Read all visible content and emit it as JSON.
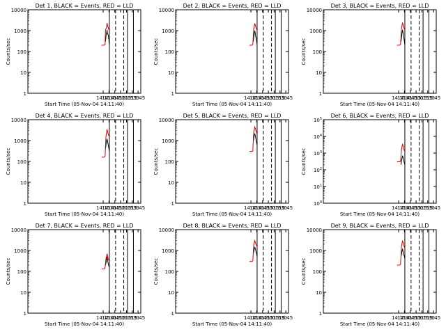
{
  "chart_data": [
    {
      "type": "line",
      "title": "Det 1, BLACK = Events, RED = LLD",
      "xlabel": "Start Time (05-Nov-04 14:11:40)",
      "ylabel": "Counts/sec",
      "ylim": [
        1,
        10000
      ],
      "log_y": true,
      "ytick_style": "plain",
      "x_ticks": [
        "14:15",
        "14:30",
        "14:45",
        "15:00",
        "15:15",
        "15:30",
        "15:45"
      ],
      "solid_lines": [
        "14:31",
        "15:18",
        "15:33"
      ],
      "dashed_lines": [
        "14:47",
        "15:08"
      ],
      "series": [
        {
          "name": "Events",
          "color": "#000000",
          "x": [
            "14:21",
            "14:22",
            "14:23",
            "14:24",
            "14:25",
            "14:26",
            "14:27",
            "14:28",
            "14:29",
            "14:29",
            "14:30",
            "14:30",
            "14:31"
          ],
          "values": [
            300,
            500,
            700,
            800,
            1100,
            700,
            700,
            600,
            500,
            400,
            400,
            300,
            200
          ]
        },
        {
          "name": "LLD",
          "color": "#cc0000",
          "x": [
            "14:11",
            "14:14",
            "14:17",
            "14:20",
            "14:21",
            "14:23",
            "14:24",
            "14:25",
            "14:27",
            "14:28",
            "14:29",
            "14:31"
          ],
          "values": [
            200,
            200,
            200,
            220,
            1100,
            1300,
            1700,
            2300,
            1500,
            1400,
            1200,
            1000
          ]
        }
      ]
    },
    {
      "type": "line",
      "title": "Det 2, BLACK = Events, RED = LLD",
      "xlabel": "Start Time (05-Nov-04 14:11:40)",
      "ylabel": "Counts/sec",
      "ylim": [
        1,
        10000
      ],
      "log_y": true,
      "ytick_style": "plain",
      "x_ticks": [
        "14:15",
        "14:30",
        "14:45",
        "15:00",
        "15:15",
        "15:30",
        "15:45"
      ],
      "solid_lines": [
        "14:31",
        "15:18",
        "15:33"
      ],
      "dashed_lines": [
        "14:47",
        "15:08"
      ],
      "series": [
        {
          "name": "Events",
          "color": "#000000",
          "x": [
            "14:21",
            "14:23",
            "14:25",
            "14:27",
            "14:29",
            "14:31"
          ],
          "values": [
            300,
            600,
            1000,
            600,
            400,
            200
          ]
        },
        {
          "name": "LLD",
          "color": "#cc0000",
          "x": [
            "14:11",
            "14:17",
            "14:20",
            "14:22",
            "14:25",
            "14:28",
            "14:31"
          ],
          "values": [
            200,
            200,
            220,
            1200,
            2200,
            1400,
            1000
          ]
        }
      ]
    },
    {
      "type": "line",
      "title": "Det 3, BLACK = Events, RED = LLD",
      "xlabel": "Start Time (05-Nov-04 14:11:40)",
      "ylabel": "Counts/sec",
      "ylim": [
        1,
        10000
      ],
      "log_y": true,
      "ytick_style": "plain",
      "x_ticks": [
        "14:15",
        "14:30",
        "14:45",
        "15:00",
        "15:15",
        "15:30",
        "15:45"
      ],
      "solid_lines": [
        "14:31",
        "15:18",
        "15:33"
      ],
      "dashed_lines": [
        "14:47",
        "15:08"
      ],
      "series": [
        {
          "name": "Events",
          "color": "#000000",
          "x": [
            "14:21",
            "14:23",
            "14:25",
            "14:27",
            "14:29",
            "14:31"
          ],
          "values": [
            300,
            600,
            1100,
            700,
            400,
            200
          ]
        },
        {
          "name": "LLD",
          "color": "#cc0000",
          "x": [
            "14:11",
            "14:17",
            "14:20",
            "14:22",
            "14:25",
            "14:28",
            "14:31"
          ],
          "values": [
            200,
            200,
            220,
            1200,
            2400,
            1500,
            1000
          ]
        }
      ]
    },
    {
      "type": "line",
      "title": "Det 4, BLACK = Events, RED = LLD",
      "xlabel": "Start Time (05-Nov-04 14:11:40)",
      "ylabel": "Counts/sec",
      "ylim": [
        1,
        10000
      ],
      "log_y": true,
      "ytick_style": "plain",
      "x_ticks": [
        "14:15",
        "14:30",
        "14:45",
        "15:00",
        "15:15",
        "15:30",
        "15:45"
      ],
      "solid_lines": [
        "14:31",
        "15:18",
        "15:33"
      ],
      "dashed_lines": [
        "14:47",
        "15:08"
      ],
      "series": [
        {
          "name": "Events",
          "color": "#000000",
          "x": [
            "14:21",
            "14:23",
            "14:25",
            "14:27",
            "14:29",
            "14:31"
          ],
          "values": [
            400,
            800,
            1200,
            800,
            500,
            300
          ]
        },
        {
          "name": "LLD",
          "color": "#cc0000",
          "x": [
            "14:11",
            "14:17",
            "14:20",
            "14:22",
            "14:25",
            "14:28",
            "14:31"
          ],
          "values": [
            160,
            160,
            180,
            1500,
            3500,
            2000,
            1500
          ]
        }
      ]
    },
    {
      "type": "line",
      "title": "Det 5, BLACK = Events, RED = LLD",
      "xlabel": "Start Time (05-Nov-04 14:11:40)",
      "ylabel": "Counts/sec",
      "ylim": [
        1,
        10000
      ],
      "log_y": true,
      "ytick_style": "plain",
      "x_ticks": [
        "14:15",
        "14:30",
        "14:45",
        "15:00",
        "15:15",
        "15:30",
        "15:45"
      ],
      "solid_lines": [
        "14:31",
        "15:18",
        "15:33"
      ],
      "dashed_lines": [
        "14:47",
        "15:08"
      ],
      "series": [
        {
          "name": "Events",
          "color": "#000000",
          "x": [
            "14:21",
            "14:23",
            "14:25",
            "14:27",
            "14:29",
            "14:31"
          ],
          "values": [
            900,
            1500,
            2200,
            1500,
            900,
            600
          ]
        },
        {
          "name": "LLD",
          "color": "#cc0000",
          "x": [
            "14:11",
            "14:17",
            "14:20",
            "14:22",
            "14:25",
            "14:28",
            "14:31"
          ],
          "values": [
            300,
            300,
            320,
            2500,
            4500,
            3000,
            2000
          ]
        }
      ]
    },
    {
      "type": "line",
      "title": "Det 6, BLACK = Events, RED = LLD",
      "xlabel": "Start Time (05-Nov-04 14:11:40)",
      "ylabel": "Counts/sec",
      "ylim": [
        1,
        100000
      ],
      "log_y": true,
      "ytick_style": "power",
      "x_ticks": [
        "14:15",
        "14:30",
        "14:45",
        "15:00",
        "15:15",
        "15:30",
        "15:45"
      ],
      "solid_lines": [
        "14:31",
        "15:18",
        "15:33"
      ],
      "dashed_lines": [
        "14:47",
        "15:08"
      ],
      "series": [
        {
          "name": "Events",
          "color": "#000000",
          "x": [
            "14:21",
            "14:23",
            "14:25",
            "14:27",
            "14:29",
            "14:31"
          ],
          "values": [
            200,
            400,
            700,
            500,
            300,
            200
          ]
        },
        {
          "name": "LLD",
          "color": "#cc0000",
          "x": [
            "14:11",
            "14:17",
            "14:20",
            "14:22",
            "14:25",
            "14:28",
            "14:31"
          ],
          "values": [
            300,
            300,
            320,
            1500,
            3500,
            1800,
            1200
          ]
        }
      ]
    },
    {
      "type": "line",
      "title": "Det 7, BLACK = Events, RED = LLD",
      "xlabel": "Start Time (05-Nov-04 14:11:40)",
      "ylabel": "Counts/sec",
      "ylim": [
        1,
        10000
      ],
      "log_y": true,
      "ytick_style": "plain",
      "x_ticks": [
        "14:15",
        "14:30",
        "14:45",
        "15:00",
        "15:15",
        "15:30",
        "15:45"
      ],
      "solid_lines": [
        "14:31",
        "15:18",
        "15:33"
      ],
      "dashed_lines": [
        "14:47",
        "15:08"
      ],
      "series": [
        {
          "name": "Events",
          "color": "#000000",
          "x": [
            "14:21",
            "14:23",
            "14:25",
            "14:27",
            "14:29",
            "14:31"
          ],
          "values": [
            200,
            300,
            500,
            300,
            200,
            150
          ]
        },
        {
          "name": "LLD",
          "color": "#cc0000",
          "x": [
            "14:11",
            "14:17",
            "14:20",
            "14:22",
            "14:25",
            "14:28",
            "14:31"
          ],
          "values": [
            130,
            130,
            150,
            400,
            700,
            400,
            300
          ]
        }
      ]
    },
    {
      "type": "line",
      "title": "Det 8, BLACK = Events, RED = LLD",
      "xlabel": "Start Time (05-Nov-04 14:11:40)",
      "ylabel": "Counts/sec",
      "ylim": [
        1,
        10000
      ],
      "log_y": true,
      "ytick_style": "plain",
      "x_ticks": [
        "14:15",
        "14:30",
        "14:45",
        "15:00",
        "15:15",
        "15:30",
        "15:45"
      ],
      "solid_lines": [
        "14:31",
        "15:18",
        "15:33"
      ],
      "dashed_lines": [
        "14:47",
        "15:08"
      ],
      "series": [
        {
          "name": "Events",
          "color": "#000000",
          "x": [
            "14:21",
            "14:23",
            "14:25",
            "14:27",
            "14:29",
            "14:31"
          ],
          "values": [
            700,
            1000,
            1500,
            1100,
            800,
            500
          ]
        },
        {
          "name": "LLD",
          "color": "#cc0000",
          "x": [
            "14:11",
            "14:17",
            "14:20",
            "14:22",
            "14:25",
            "14:28",
            "14:31"
          ],
          "values": [
            300,
            300,
            320,
            1800,
            3000,
            2000,
            1500
          ]
        }
      ]
    },
    {
      "type": "line",
      "title": "Det 9, BLACK = Events, RED = LLD",
      "xlabel": "Start Time (05-Nov-04 14:11:40)",
      "ylabel": "Counts/sec",
      "ylim": [
        1,
        10000
      ],
      "log_y": true,
      "ytick_style": "plain",
      "x_ticks": [
        "14:15",
        "14:30",
        "14:45",
        "15:00",
        "15:15",
        "15:30",
        "15:45"
      ],
      "solid_lines": [
        "14:31",
        "15:18",
        "15:33"
      ],
      "dashed_lines": [
        "14:47",
        "15:08"
      ],
      "series": [
        {
          "name": "Events",
          "color": "#000000",
          "x": [
            "14:21",
            "14:23",
            "14:25",
            "14:27",
            "14:29",
            "14:31"
          ],
          "values": [
            500,
            800,
            1200,
            800,
            600,
            400
          ]
        },
        {
          "name": "LLD",
          "color": "#cc0000",
          "x": [
            "14:11",
            "14:17",
            "14:20",
            "14:22",
            "14:25",
            "14:28",
            "14:31"
          ],
          "values": [
            200,
            200,
            220,
            1500,
            3000,
            1800,
            1300
          ]
        }
      ]
    }
  ]
}
